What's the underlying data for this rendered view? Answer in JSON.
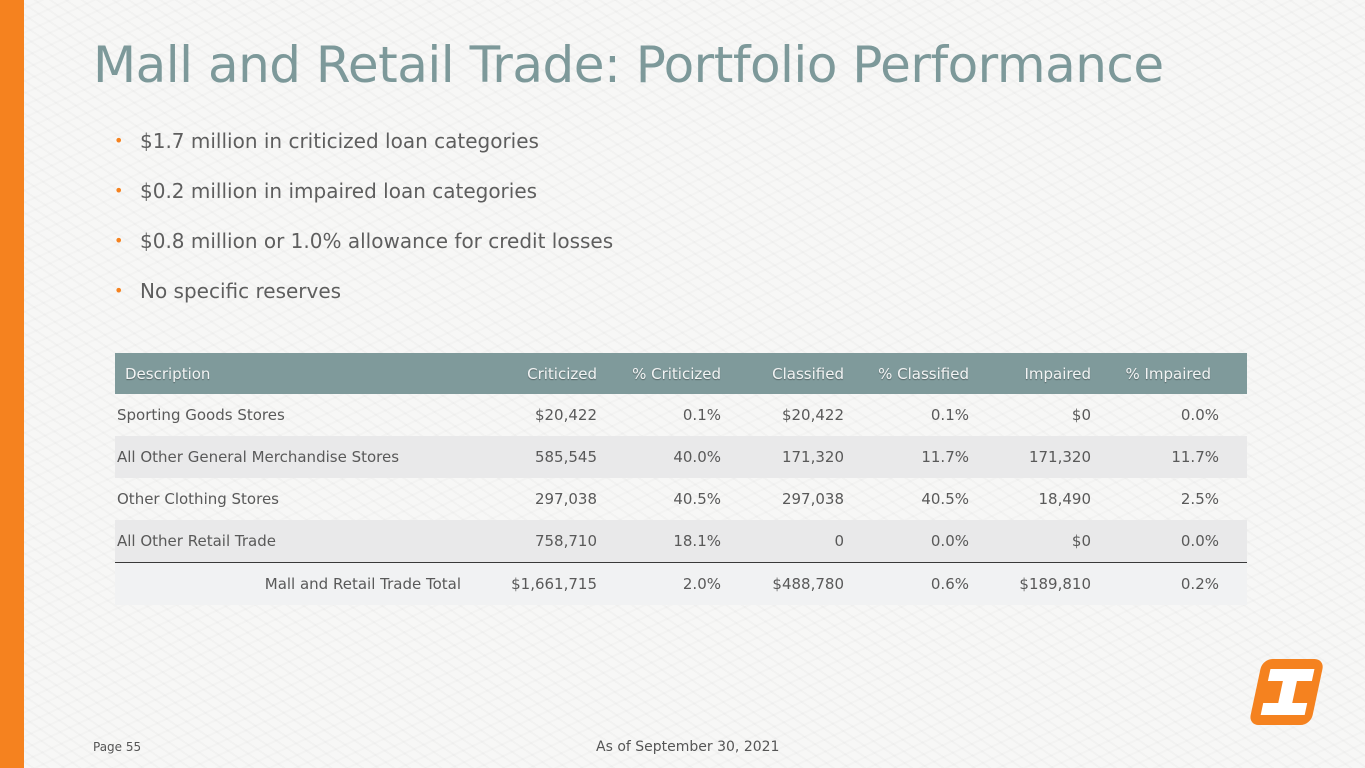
{
  "title": "Mall and Retail Trade: Portfolio Performance",
  "bullets": [
    "$1.7 million in criticized loan categories",
    "$0.2 million in impaired loan categories",
    "$0.8 million or 1.0% allowance for credit losses",
    "No specific reserves"
  ],
  "table": {
    "headers": [
      "Description",
      "Criticized",
      "% Criticized",
      "Classified",
      "% Classified",
      "Impaired",
      "% Impaired"
    ],
    "rows": [
      [
        "Sporting Goods Stores",
        "$20,422",
        "0.1%",
        "$20,422",
        "0.1%",
        "$0",
        "0.0%"
      ],
      [
        "All Other General Merchandise Stores",
        "585,545",
        "40.0%",
        "171,320",
        "11.7%",
        "171,320",
        "11.7%"
      ],
      [
        "Other Clothing Stores",
        "297,038",
        "40.5%",
        "297,038",
        "40.5%",
        "18,490",
        "2.5%"
      ],
      [
        "All Other Retail Trade",
        "758,710",
        "18.1%",
        "0",
        "0.0%",
        "$0",
        "0.0%"
      ],
      [
        "Mall and Retail Trade Total",
        "$1,661,715",
        "2.0%",
        "$488,780",
        "0.6%",
        "$189,810",
        "0.2%"
      ]
    ]
  },
  "footer": {
    "page": "Page 55",
    "date": "As of September 30, 2021"
  },
  "colors": {
    "accent": "#f5821f",
    "title": "#7d999a",
    "header_bg": "#7f9a9b"
  },
  "icons": {
    "logo": "brand-logo-icon"
  }
}
